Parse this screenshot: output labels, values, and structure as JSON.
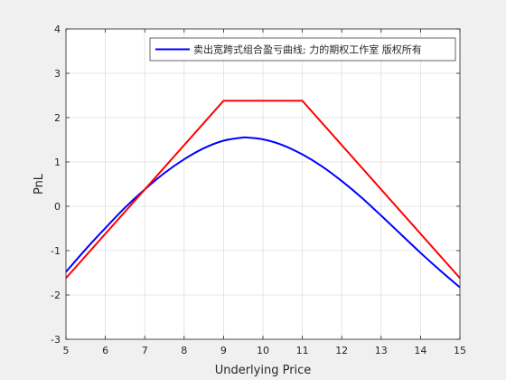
{
  "chart_data": {
    "type": "line",
    "title": "",
    "xlabel": "Underlying Price",
    "ylabel": "PnL",
    "xlim": [
      5,
      15
    ],
    "ylim": [
      -3,
      4
    ],
    "xticks": [
      5,
      6,
      7,
      8,
      9,
      10,
      11,
      12,
      13,
      14,
      15
    ],
    "yticks": [
      -3,
      -2,
      -1,
      0,
      1,
      2,
      3,
      4
    ],
    "grid": true,
    "legend_position": "top-right",
    "series": [
      {
        "name": "卖出宽跨式组合盈亏曲线; 力的期权工作室 版权所有",
        "color": "#0000ff",
        "x": [
          5,
          5.5,
          6,
          6.5,
          7,
          7.5,
          8,
          8.5,
          9,
          9.5,
          9.6,
          10,
          10.5,
          11,
          11.5,
          12,
          12.5,
          13,
          13.5,
          14,
          14.5,
          15
        ],
        "y": [
          -1.48,
          -0.97,
          -0.49,
          -0.03,
          0.38,
          0.75,
          1.06,
          1.31,
          1.48,
          1.55,
          1.55,
          1.51,
          1.38,
          1.17,
          0.9,
          0.57,
          0.2,
          -0.21,
          -0.63,
          -1.05,
          -1.45,
          -1.83
        ]
      },
      {
        "name": "",
        "color": "#ff0000",
        "x": [
          5,
          9,
          11,
          15
        ],
        "y": [
          -1.62,
          2.38,
          2.38,
          -1.62
        ]
      }
    ]
  }
}
